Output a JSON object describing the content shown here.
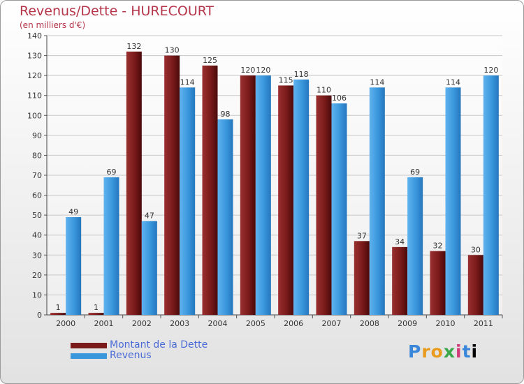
{
  "colors": {
    "dette": "#7a1a1a",
    "revenus": "#3a97dc",
    "title": "#b5364a",
    "legend_text": "#4a6bd8"
  },
  "logo_text": "Proxiti",
  "chart_data": {
    "type": "bar",
    "title": "Revenus/Dette - HURECOURT",
    "subtitle": "(en milliers d'€)",
    "categories": [
      "2000",
      "2001",
      "2002",
      "2003",
      "2004",
      "2005",
      "2006",
      "2007",
      "2008",
      "2009",
      "2010",
      "2011"
    ],
    "series": [
      {
        "name": "Montant de la Dette",
        "values": [
          1,
          1,
          132,
          130,
          125,
          120,
          115,
          110,
          37,
          34,
          32,
          30
        ]
      },
      {
        "name": "Revenus",
        "values": [
          49,
          69,
          47,
          114,
          98,
          120,
          118,
          106,
          114,
          69,
          114,
          120
        ]
      }
    ],
    "ylim": [
      0,
      140
    ],
    "yticks": [
      0,
      10,
      20,
      30,
      40,
      50,
      60,
      70,
      80,
      90,
      100,
      110,
      120,
      130,
      140
    ],
    "grid": true,
    "legend": "bottom-left"
  }
}
